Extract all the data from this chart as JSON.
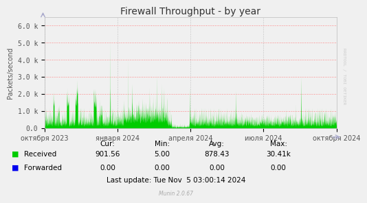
{
  "title": "Firewall Throughput - by year",
  "ylabel": "Packets/second",
  "background_color": "#F0F0F0",
  "plot_bg_color": "#F0F0F0",
  "grid_color_h": "#FF8080",
  "grid_color_v": "#C0C0C0",
  "yticks": [
    0,
    1000,
    2000,
    3000,
    4000,
    5000,
    6000
  ],
  "ytick_labels": [
    "0.0",
    "1.0 k",
    "2.0 k",
    "3.0 k",
    "4.0 k",
    "5.0 k",
    "6.0 k"
  ],
  "ylim": [
    0,
    6500
  ],
  "xtick_labels": [
    "октября 2023",
    "января 2024",
    "апреля 2024",
    "июля 2024",
    "октября 2024"
  ],
  "xtick_pos": [
    0.0,
    0.25,
    0.5,
    0.75,
    1.0
  ],
  "fill_color": "#00CC00",
  "forwarded_color": "#0000EE",
  "arrow_color": "#AAAACC",
  "legend_received": "Received",
  "legend_forwarded": "Forwarded",
  "cur_received": "901.56",
  "min_received": "5.00",
  "avg_received": "878.43",
  "max_received": "30.41k",
  "cur_forwarded": "0.00",
  "min_forwarded": "0.00",
  "avg_forwarded": "0.00",
  "max_forwarded": "0.00",
  "last_update": "Last update: Tue Nov  5 03:00:14 2024",
  "munin_version": "Munin 2.0.67",
  "rrdtool_text": "RRDTOOL / TOBI OETIKER",
  "title_fontsize": 10,
  "axis_fontsize": 7,
  "legend_fontsize": 7.5,
  "watermark_fontsize": 5.5
}
